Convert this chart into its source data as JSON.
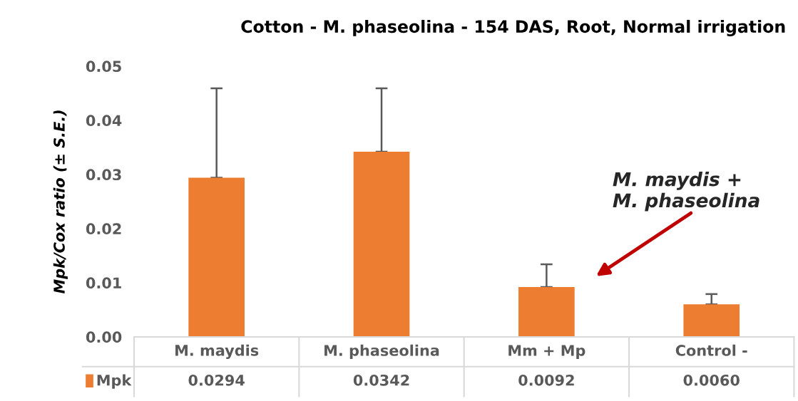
{
  "chart_data": {
    "type": "bar",
    "title": "Cotton - M. phaseolina - 154 DAS, Root, Normal irrigation",
    "ylabel": "Mpk/Cox ratio (± S.E.)",
    "categories": [
      "M. maydis",
      "M. phaseolina",
      "Mm + Mp",
      "Control -"
    ],
    "series": [
      {
        "name": "Mpk",
        "color": "#ed7d31",
        "values": [
          0.0294,
          0.0342,
          0.0092,
          0.006
        ],
        "errors": [
          [
            0.0294,
            0.0459
          ],
          [
            0.0342,
            0.0459
          ],
          [
            0.0092,
            0.0134
          ],
          [
            0.006,
            0.0079
          ]
        ],
        "value_labels": [
          "0.0294",
          "0.0342",
          "0.0092",
          "0.0060"
        ]
      }
    ],
    "ylim": [
      0,
      0.05
    ],
    "yticks": [
      {
        "value": 0,
        "label": "0.00"
      },
      {
        "value": 0.01,
        "label": "0.01"
      },
      {
        "value": 0.02,
        "label": "0.02"
      },
      {
        "value": 0.03,
        "label": "0.03"
      },
      {
        "value": 0.04,
        "label": "0.04"
      },
      {
        "value": 0.05,
        "label": "0.05"
      }
    ],
    "annotations": [
      "M. maydis +\nM. phaseolina"
    ],
    "legend": "bottom",
    "grid": false
  }
}
